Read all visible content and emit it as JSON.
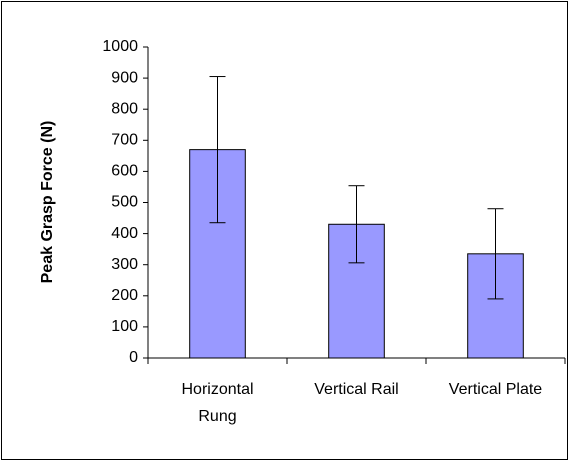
{
  "chart_data": {
    "type": "bar",
    "y_label": "Peak Grasp Force (N)",
    "categories": [
      "Horizontal Rung",
      "Vertical Rail",
      "Vertical Plate"
    ],
    "values": [
      670,
      430,
      335
    ],
    "errors": [
      235,
      124,
      145
    ],
    "color": "#9999ff",
    "ylim": [
      0,
      1000
    ],
    "yticks": [
      0,
      100,
      200,
      300,
      400,
      500,
      600,
      700,
      800,
      900,
      1000
    ],
    "grid": false
  }
}
